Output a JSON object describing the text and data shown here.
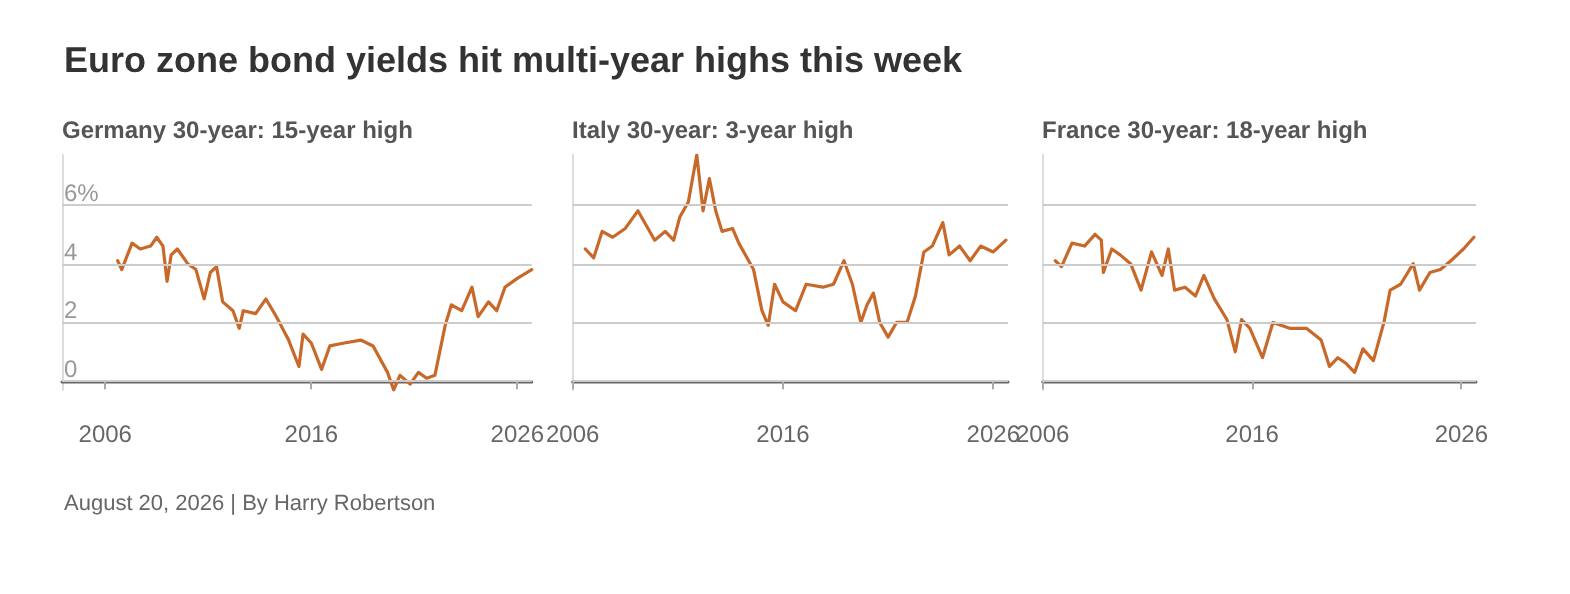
{
  "chart_data": [
    {
      "type": "line",
      "title": "Germany 30-year: 15-year high",
      "annotations": [
        "Euro zone bond yields hit multi-year highs this week",
        "August 20, 2026 | By Harry Robertson"
      ],
      "color": "#c8692a",
      "line_style": "solid",
      "grid": "y",
      "x": [
        2006.6,
        2006.8,
        2007.3,
        2007.7,
        2008.2,
        2008.5,
        2008.8,
        2009.0,
        2009.2,
        2009.5,
        2010.0,
        2010.4,
        2010.8,
        2011.1,
        2011.4,
        2011.7,
        2012.2,
        2012.5,
        2012.7,
        2013.3,
        2013.8,
        2014.3,
        2014.9,
        2015.4,
        2015.6,
        2016.0,
        2016.5,
        2016.9,
        2017.6,
        2018.4,
        2019.0,
        2019.7,
        2020.0,
        2020.3,
        2020.8,
        2021.2,
        2021.6,
        2022.0,
        2022.5,
        2022.8,
        2023.3,
        2023.8,
        2024.1,
        2024.6,
        2025.0,
        2025.4,
        2026.0,
        2026.7
      ],
      "values": [
        4.1,
        3.8,
        4.7,
        4.5,
        4.6,
        4.9,
        4.6,
        3.4,
        4.3,
        4.5,
        4.0,
        3.8,
        2.8,
        3.7,
        3.9,
        2.7,
        2.4,
        1.8,
        2.4,
        2.3,
        2.8,
        2.2,
        1.4,
        0.5,
        1.6,
        1.3,
        0.4,
        1.2,
        1.3,
        1.4,
        1.2,
        0.3,
        -0.3,
        0.2,
        -0.1,
        0.3,
        0.1,
        0.2,
        1.9,
        2.6,
        2.4,
        3.2,
        2.2,
        2.7,
        2.4,
        3.2,
        3.5,
        3.8
      ],
      "xlim": [
        2003.9,
        2026.7
      ],
      "xticks": [
        2006,
        2016,
        2026
      ],
      "ylim": [
        -0.3,
        7.7
      ],
      "yticks": [
        0,
        2,
        4,
        {
          "value": 6,
          "label": "6%"
        }
      ]
    },
    {
      "type": "line",
      "title": "Italy 30-year: 3-year high",
      "color": "#c8692a",
      "line_style": "solid",
      "grid": "y",
      "tick_labels": "x",
      "x": [
        2006.6,
        2007.0,
        2007.4,
        2007.9,
        2008.5,
        2009.1,
        2009.5,
        2009.9,
        2010.4,
        2010.8,
        2011.1,
        2011.5,
        2011.9,
        2012.2,
        2012.5,
        2012.8,
        2013.1,
        2013.6,
        2013.9,
        2014.6,
        2015.0,
        2015.3,
        2015.6,
        2016.0,
        2016.6,
        2017.1,
        2017.9,
        2018.4,
        2018.9,
        2019.3,
        2019.7,
        2020.0,
        2020.3,
        2020.6,
        2021.0,
        2021.4,
        2021.9,
        2022.3,
        2022.7,
        2023.1,
        2023.6,
        2023.9,
        2024.4,
        2024.9,
        2025.4,
        2026.0,
        2026.6
      ],
      "values": [
        4.5,
        4.2,
        5.1,
        4.9,
        5.2,
        5.8,
        5.3,
        4.8,
        5.1,
        4.8,
        5.6,
        6.1,
        7.7,
        5.8,
        6.9,
        5.8,
        5.1,
        5.2,
        4.7,
        3.8,
        2.4,
        1.9,
        3.3,
        2.7,
        2.4,
        3.3,
        3.2,
        3.3,
        4.1,
        3.3,
        2.0,
        2.6,
        3.0,
        2.0,
        1.5,
        2.0,
        2.0,
        2.9,
        4.4,
        4.6,
        5.4,
        4.3,
        4.6,
        4.1,
        4.6,
        4.4,
        4.8
      ],
      "xlim": [
        2006,
        2026.7
      ],
      "xticks": [
        2006,
        2016,
        2026
      ],
      "ylim": [
        -0.3,
        7.7
      ],
      "yticks": [
        0,
        2,
        4,
        6
      ]
    },
    {
      "type": "line",
      "title": "France 30-year: 18-year high",
      "color": "#c8692a",
      "line_style": "solid",
      "grid": "y",
      "tick_labels": "x",
      "x": [
        2006.6,
        2006.9,
        2007.4,
        2008.0,
        2008.5,
        2008.8,
        2008.9,
        2009.3,
        2009.7,
        2010.2,
        2010.7,
        2011.2,
        2011.7,
        2012.0,
        2012.3,
        2012.8,
        2013.3,
        2013.7,
        2014.2,
        2014.8,
        2015.2,
        2015.5,
        2015.9,
        2016.5,
        2017.0,
        2017.8,
        2018.6,
        2019.3,
        2019.7,
        2020.1,
        2020.5,
        2020.9,
        2021.3,
        2021.8,
        2022.3,
        2022.6,
        2023.1,
        2023.7,
        2024.0,
        2024.5,
        2025.0,
        2025.5,
        2026.1,
        2026.6
      ],
      "values": [
        4.1,
        3.9,
        4.7,
        4.6,
        5.0,
        4.8,
        3.7,
        4.5,
        4.3,
        4.0,
        3.1,
        4.4,
        3.6,
        4.5,
        3.1,
        3.2,
        2.9,
        3.6,
        2.8,
        2.1,
        1.0,
        2.1,
        1.8,
        0.8,
        2.0,
        1.8,
        1.8,
        1.4,
        0.5,
        0.8,
        0.6,
        0.3,
        1.1,
        0.7,
        2.0,
        3.1,
        3.3,
        4.0,
        3.1,
        3.7,
        3.8,
        4.1,
        4.5,
        4.9
      ],
      "xlim": [
        2006,
        2026.7
      ],
      "xticks": [
        2006,
        2016,
        2026
      ],
      "ylim": [
        -0.3,
        7.7
      ],
      "yticks": [
        0,
        2,
        4,
        6
      ]
    }
  ]
}
